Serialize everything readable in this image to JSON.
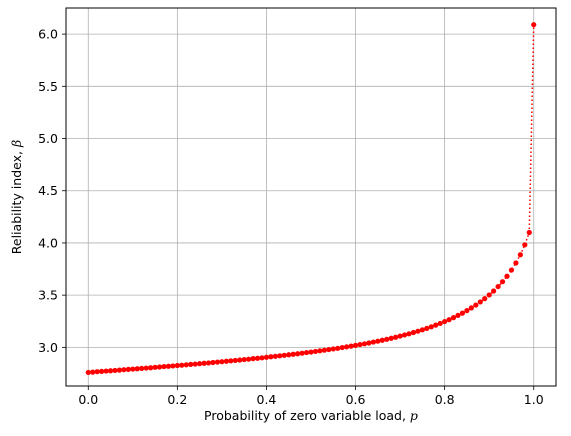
{
  "chart_data": {
    "type": "line",
    "title": "",
    "xlabel": "Probability of zero variable load, ",
    "xlabel_symbol": "p",
    "ylabel": "Reliability index, ",
    "ylabel_symbol": "β",
    "xlim": [
      -0.05,
      1.05
    ],
    "ylim": [
      2.63,
      6.25
    ],
    "xticks": [
      0.0,
      0.2,
      0.4,
      0.6,
      0.8,
      1.0
    ],
    "xtick_labels": [
      "0.0",
      "0.2",
      "0.4",
      "0.6",
      "0.8",
      "1.0"
    ],
    "yticks": [
      3.0,
      3.5,
      4.0,
      4.5,
      5.0,
      5.5,
      6.0
    ],
    "ytick_labels": [
      "3.0",
      "3.5",
      "4.0",
      "4.5",
      "5.0",
      "5.5",
      "6.0"
    ],
    "grid": true,
    "series": [
      {
        "color": "#ff0000",
        "line_style": "dotted",
        "marker": "circle",
        "x": [
          0.0,
          0.01,
          0.02,
          0.03,
          0.04,
          0.05,
          0.06,
          0.07,
          0.08,
          0.09,
          0.1,
          0.11,
          0.12,
          0.13,
          0.14,
          0.15,
          0.16,
          0.17,
          0.18,
          0.19,
          0.2,
          0.21,
          0.22,
          0.23,
          0.24,
          0.25,
          0.26,
          0.27,
          0.28,
          0.29,
          0.3,
          0.31,
          0.32,
          0.33,
          0.34,
          0.35,
          0.36,
          0.37,
          0.38,
          0.39,
          0.4,
          0.41,
          0.42,
          0.43,
          0.44,
          0.45,
          0.46,
          0.47,
          0.48,
          0.49,
          0.5,
          0.51,
          0.52,
          0.53,
          0.54,
          0.55,
          0.56,
          0.57,
          0.58,
          0.59,
          0.6,
          0.61,
          0.62,
          0.63,
          0.64,
          0.65,
          0.66,
          0.67,
          0.68,
          0.69,
          0.7,
          0.71,
          0.72,
          0.73,
          0.74,
          0.75,
          0.76,
          0.77,
          0.78,
          0.79,
          0.8,
          0.81,
          0.82,
          0.83,
          0.84,
          0.85,
          0.86,
          0.87,
          0.88,
          0.89,
          0.9,
          0.91,
          0.92,
          0.93,
          0.94,
          0.95,
          0.96,
          0.97,
          0.98,
          0.99,
          1.0
        ],
        "y": [
          2.76,
          2.763,
          2.767,
          2.77,
          2.773,
          2.776,
          2.779,
          2.782,
          2.786,
          2.789,
          2.792,
          2.795,
          2.799,
          2.802,
          2.805,
          2.809,
          2.812,
          2.816,
          2.819,
          2.822,
          2.826,
          2.829,
          2.833,
          2.837,
          2.84,
          2.844,
          2.848,
          2.851,
          2.855,
          2.859,
          2.863,
          2.867,
          2.871,
          2.875,
          2.879,
          2.883,
          2.887,
          2.892,
          2.896,
          2.9,
          2.905,
          2.91,
          2.914,
          2.919,
          2.924,
          2.929,
          2.934,
          2.939,
          2.944,
          2.95,
          2.955,
          2.961,
          2.967,
          2.973,
          2.979,
          2.985,
          2.991,
          2.998,
          3.005,
          3.012,
          3.019,
          3.027,
          3.034,
          3.042,
          3.051,
          3.059,
          3.068,
          3.077,
          3.087,
          3.097,
          3.108,
          3.119,
          3.13,
          3.142,
          3.155,
          3.168,
          3.182,
          3.197,
          3.213,
          3.229,
          3.247,
          3.265,
          3.285,
          3.306,
          3.328,
          3.352,
          3.378,
          3.405,
          3.435,
          3.467,
          3.502,
          3.54,
          3.582,
          3.629,
          3.681,
          3.74,
          3.808,
          3.887,
          3.982,
          4.1,
          6.09
        ]
      }
    ]
  }
}
